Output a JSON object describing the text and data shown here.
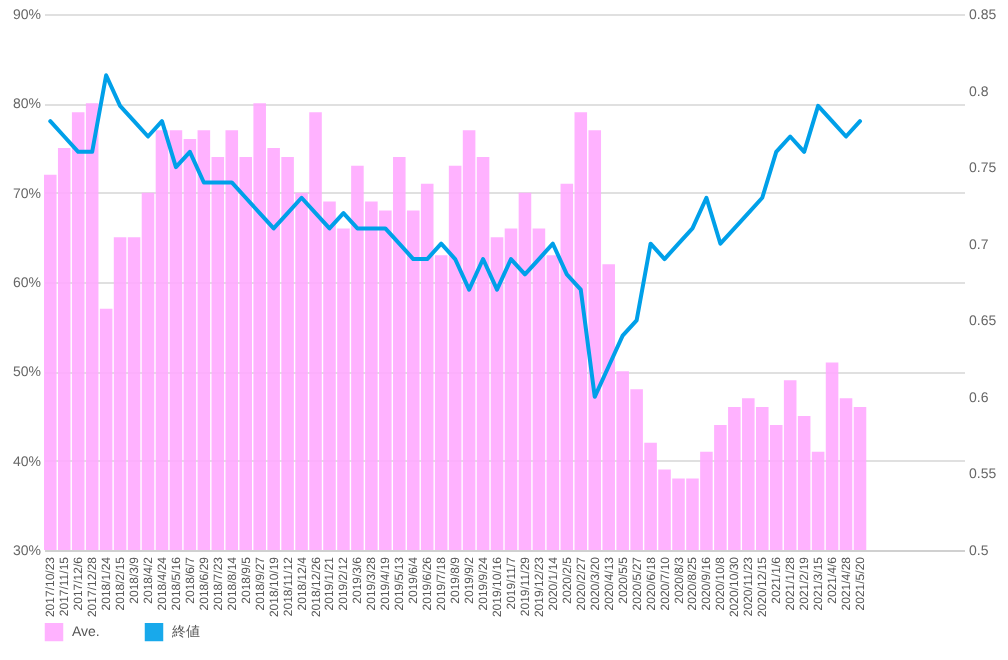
{
  "chart_data": {
    "type": "bar",
    "categories": [
      "2017/10/23",
      "2017/11/15",
      "2017/12/6",
      "2017/12/28",
      "2018/1/24",
      "2018/2/15",
      "2018/3/9",
      "2018/4/2",
      "2018/4/24",
      "2018/5/16",
      "2018/6/7",
      "2018/6/29",
      "2018/7/23",
      "2018/8/14",
      "2018/9/5",
      "2018/9/27",
      "2018/10/19",
      "2018/11/12",
      "2018/12/4",
      "2018/12/26",
      "2019/1/21",
      "2019/2/12",
      "2019/3/6",
      "2019/3/28",
      "2019/4/19",
      "2019/5/13",
      "2019/6/4",
      "2019/6/26",
      "2019/7/18",
      "2019/8/9",
      "2019/9/2",
      "2019/9/24",
      "2019/10/16",
      "2019/11/7",
      "2019/11/29",
      "2019/12/23",
      "2020/1/14",
      "2020/2/5",
      "2020/2/27",
      "2020/3/20",
      "2020/4/13",
      "2020/5/5",
      "2020/5/27",
      "2020/6/18",
      "2020/7/10",
      "2020/8/3",
      "2020/8/25",
      "2020/9/16",
      "2020/10/8",
      "2020/10/30",
      "2020/11/23",
      "2020/12/15",
      "2021/1/6",
      "2021/1/28",
      "2021/2/19",
      "2021/3/15",
      "2021/4/6",
      "2021/4/28",
      "2021/5/20",
      null,
      null,
      null,
      null,
      null,
      null,
      null
    ],
    "series": [
      {
        "name": "Ave.",
        "color": "#ffaaff",
        "values": [
          72,
          75,
          79,
          80,
          57,
          65,
          65,
          70,
          77,
          77,
          76,
          77,
          74,
          77,
          74,
          80,
          75,
          74,
          70,
          79,
          69,
          66,
          73,
          69,
          68,
          74,
          68,
          71,
          63,
          73,
          77,
          74,
          65,
          66,
          70,
          66,
          63,
          71,
          79,
          77,
          62,
          50,
          48,
          42,
          39,
          38,
          38,
          41,
          44,
          46,
          47,
          46,
          44,
          49,
          45,
          41,
          51,
          47,
          46,
          null,
          null,
          null,
          null,
          null,
          null,
          null
        ]
      },
      {
        "name": "終値",
        "type": "line",
        "axis": "y2",
        "color": "#00a0e9",
        "values": [
          0.78,
          0.77,
          0.76,
          0.76,
          0.81,
          0.79,
          0.78,
          0.77,
          0.78,
          0.75,
          0.76,
          0.74,
          0.74,
          0.74,
          0.73,
          0.72,
          0.71,
          0.72,
          0.73,
          0.72,
          0.71,
          0.72,
          0.71,
          0.71,
          0.71,
          0.7,
          0.69,
          0.69,
          0.7,
          0.69,
          0.67,
          0.69,
          0.67,
          0.69,
          0.68,
          0.69,
          0.7,
          0.68,
          0.67,
          0.6,
          0.62,
          0.64,
          0.65,
          0.7,
          0.69,
          0.7,
          0.71,
          0.73,
          0.7,
          0.71,
          0.72,
          0.73,
          0.76,
          0.77,
          0.76,
          0.79,
          0.78,
          0.77,
          0.78,
          null,
          null,
          null,
          null,
          null,
          null,
          null
        ]
      }
    ],
    "ylim": [
      30,
      90
    ],
    "yticks": [
      {
        "value": 30,
        "label": "30%"
      },
      {
        "value": 40,
        "label": "40%"
      },
      {
        "value": 50,
        "label": "50%"
      },
      {
        "value": 60,
        "label": "60%"
      },
      {
        "value": 70,
        "label": "70%"
      },
      {
        "value": 80,
        "label": "80%"
      },
      {
        "value": 90,
        "label": "90%"
      }
    ],
    "y2lim": [
      0.5,
      0.85
    ],
    "y2ticks": [
      0.5,
      0.55,
      0.6,
      0.65,
      0.7,
      0.75,
      0.8,
      0.85
    ],
    "grid": "y",
    "legend": "bottom"
  }
}
